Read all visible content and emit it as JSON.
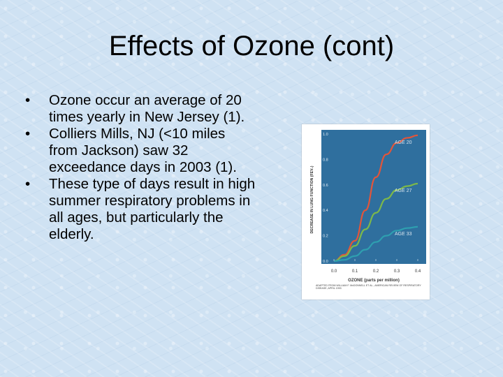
{
  "slide": {
    "title": "Effects of Ozone (cont)",
    "bullets": [
      "Ozone occur an average of 20 times yearly in New Jersey (1).",
      "Colliers Mills, NJ (<10 miles from Jackson) saw 32 exceedance days in 2003 (1).",
      "These type of days result in high summer respiratory problems in all ages, but particularly the elderly."
    ]
  },
  "chart_data": {
    "type": "line",
    "xlabel": "OZONE (parts per million)",
    "ylabel": "DECREASE IN LUNG FUNCTION (FEV₁)",
    "xlim": [
      0,
      0.4
    ],
    "ylim": [
      0,
      1.0
    ],
    "xticks": [
      "0.0",
      "0.1",
      "0.2",
      "0.3",
      "0.4"
    ],
    "yticks": [
      "0.0",
      "0.2",
      "0.4",
      "0.6",
      "0.8",
      "1.0"
    ],
    "grid": false,
    "background_color": "#2f6f9e",
    "source_note": "ADAPTED FROM WILLIAM F. McDONNELL ET AL., AMERICAN REVIEW OF RESPIRATORY DISEASE, APRIL 1993",
    "series": [
      {
        "name": "AGE 20",
        "color": "#e2553a",
        "x": [
          0.0,
          0.05,
          0.1,
          0.15,
          0.2,
          0.25,
          0.3,
          0.35,
          0.4
        ],
        "y": [
          0.0,
          0.05,
          0.16,
          0.4,
          0.66,
          0.84,
          0.93,
          0.97,
          0.99
        ]
      },
      {
        "name": "AGE 27",
        "color": "#7db84a",
        "x": [
          0.0,
          0.05,
          0.1,
          0.15,
          0.2,
          0.25,
          0.3,
          0.35,
          0.4
        ],
        "y": [
          0.0,
          0.04,
          0.12,
          0.25,
          0.38,
          0.49,
          0.56,
          0.59,
          0.61
        ]
      },
      {
        "name": "AGE 33",
        "color": "#2e9fb0",
        "x": [
          0.0,
          0.05,
          0.1,
          0.15,
          0.2,
          0.25,
          0.3,
          0.35,
          0.4
        ],
        "y": [
          0.0,
          0.01,
          0.04,
          0.09,
          0.15,
          0.2,
          0.24,
          0.26,
          0.27
        ]
      }
    ]
  }
}
